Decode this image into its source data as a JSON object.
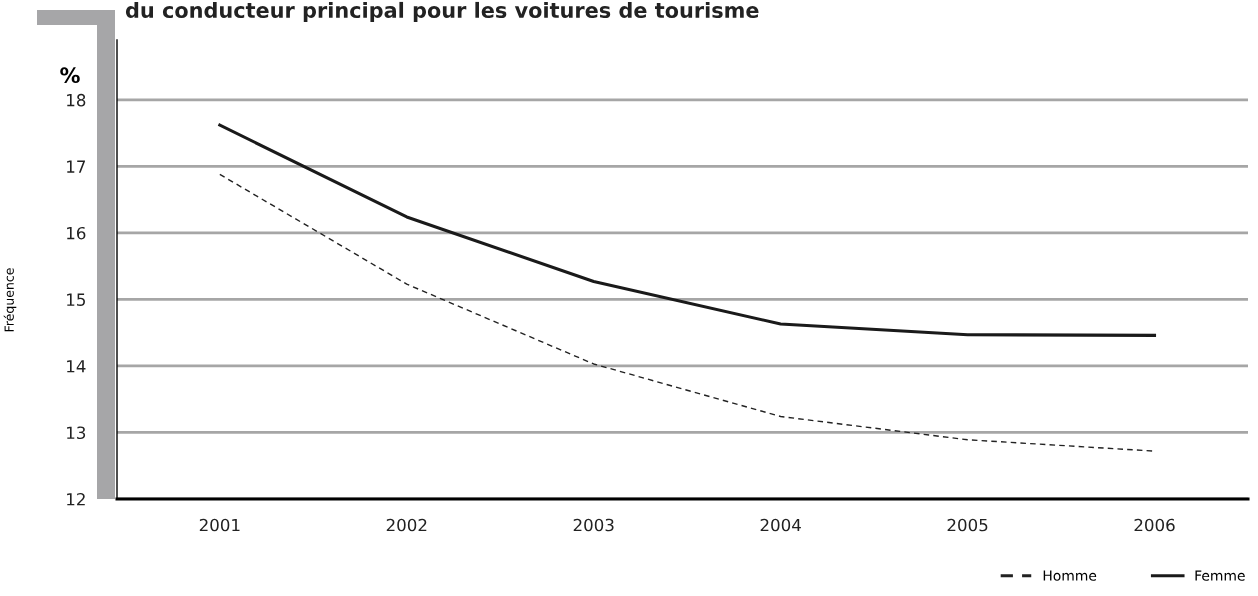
{
  "chart_data": {
    "type": "line",
    "title": "du conducteur principal pour les voitures de tourisme",
    "ylabel": "Fréquence",
    "annotations": [
      "%"
    ],
    "categories": [
      "2001",
      "2002",
      "2003",
      "2004",
      "2005",
      "2006"
    ],
    "series": [
      {
        "name": "Homme",
        "color": "#222222",
        "line_style": "dashed",
        "values": [
          16.88,
          15.23,
          14.03,
          13.24,
          12.89,
          12.72
        ]
      },
      {
        "name": "Femme",
        "color": "#1a1a1a",
        "line_style": "solid",
        "values": [
          17.62,
          16.24,
          15.27,
          14.63,
          14.47,
          14.46
        ]
      }
    ],
    "ylim": [
      12,
      18.9
    ],
    "yticks": [
      12,
      13,
      14,
      15,
      16,
      17,
      18
    ],
    "grid": "y",
    "legend": "bottom right",
    "marker": "none"
  }
}
